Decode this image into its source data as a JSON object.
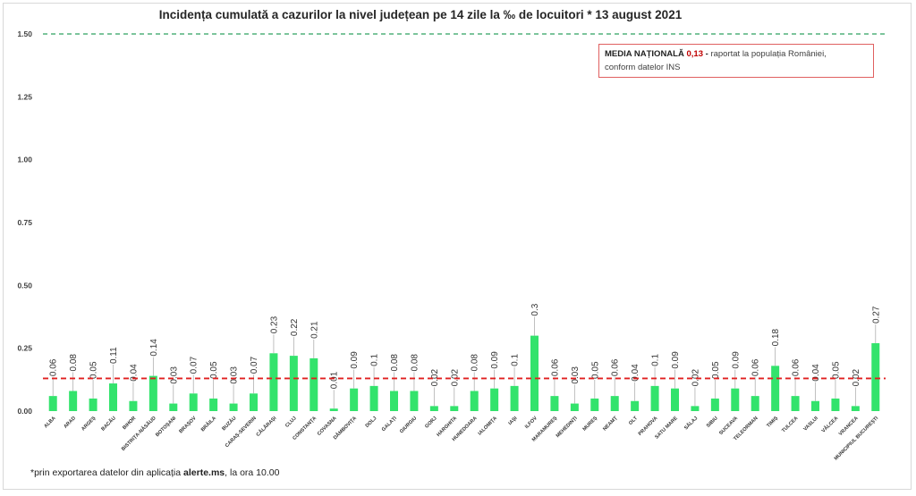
{
  "title": "Incidența cumulată a cazurilor la nivel județean pe 14 zile la ‰ de locuitori *  13 august 2021",
  "note": {
    "label": "MEDIA NAȚIONALĂ",
    "value": "0,13",
    "dash": "-",
    "text_line1": "raportat la populația României,",
    "text_line2": "conform datelor INS"
  },
  "footnote": {
    "prefix": "*prin exportarea datelor din aplicația",
    "link": "alerte.ms",
    "suffix": ", la ora 10.00"
  },
  "colors": {
    "bar": "#33e36c",
    "leader": "#b0b0b0",
    "mean_line": "#e02020",
    "top_line": "#2ea060",
    "grid_label": "#404040"
  },
  "chart_data": {
    "type": "bar",
    "title": "Incidența cumulată a cazurilor la nivel județean pe 14 zile la ‰ de locuitori *  13 august 2021",
    "categories": [
      "ALBA",
      "ARAD",
      "ARGEȘ",
      "BACĂU",
      "BIHOR",
      "BISTRIȚA-NĂSĂUD",
      "BOTOȘANI",
      "BRAȘOV",
      "BRĂILA",
      "BUZĂU",
      "CARAȘ-SEVERIN",
      "CĂLĂRAȘI",
      "CLUJ",
      "CONSTANȚA",
      "COVASNA",
      "DÂMBOVIȚA",
      "DOLJ",
      "GALAȚI",
      "GIURGIU",
      "GORJ",
      "HARGHITA",
      "HUNEDOARA",
      "IALOMIȚA",
      "IAȘI",
      "ILFOV",
      "MARAMUREȘ",
      "MEHEDINȚI",
      "MUREȘ",
      "NEAMȚ",
      "OLT",
      "PRAHOVA",
      "SATU MARE",
      "SĂLAJ",
      "SIBIU",
      "SUCEAVA",
      "TELEORMAN",
      "TIMIȘ",
      "TULCEA",
      "VASLUI",
      "VÂLCEA",
      "VRANCEA",
      "MUNICIPIUL BUCUREȘTI"
    ],
    "values": [
      0.06,
      0.08,
      0.05,
      0.11,
      0.04,
      0.14,
      0.03,
      0.07,
      0.05,
      0.03,
      0.07,
      0.23,
      0.22,
      0.21,
      0.01,
      0.09,
      0.1,
      0.08,
      0.08,
      0.02,
      0.02,
      0.08,
      0.09,
      0.1,
      0.3,
      0.06,
      0.03,
      0.05,
      0.06,
      0.04,
      0.1,
      0.09,
      0.02,
      0.05,
      0.09,
      0.06,
      0.18,
      0.06,
      0.04,
      0.05,
      0.02,
      0.27
    ],
    "value_labels": [
      "0.06",
      "0.08",
      "0.05",
      "0.11",
      "0.04",
      "0.14",
      "0.03",
      "0.07",
      "0.05",
      "0.03",
      "0.07",
      "0.23",
      "0.22",
      "0.21",
      "0.01",
      "0.09",
      "0.1",
      "0.08",
      "0.08",
      "0.02",
      "0.02",
      "0.08",
      "0.09",
      "0.1",
      "0.3",
      "0.06",
      "0.03",
      "0.05",
      "0.06",
      "0.04",
      "0.1",
      "0.09",
      "0.02",
      "0.05",
      "0.09",
      "0.06",
      "0.18",
      "0.06",
      "0.04",
      "0.05",
      "0.02",
      "0.27"
    ],
    "yticks": [
      "0.00",
      "0.25",
      "0.50",
      "0.75",
      "1.00",
      "1.25",
      "1.50"
    ],
    "ylim": [
      0,
      1.5
    ],
    "reference_lines": [
      {
        "value": 0.13,
        "style": "dashed",
        "color": "#e02020"
      },
      {
        "value": 1.5,
        "style": "dashed",
        "color": "#2ea060"
      }
    ],
    "grid": false,
    "legend": "top-right"
  }
}
